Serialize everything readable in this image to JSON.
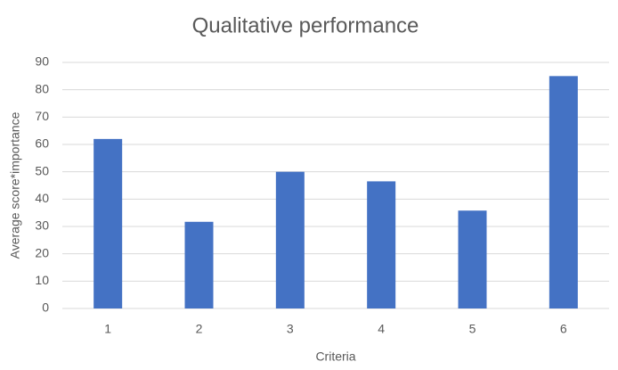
{
  "chart_data": {
    "type": "bar",
    "title": "Qualitative performance",
    "x_label": "Criteria",
    "y_label": "Average score*importance",
    "categories": [
      "1",
      "2",
      "3",
      "4",
      "5",
      "6"
    ],
    "values": [
      62,
      31.7,
      50,
      46.5,
      35.8,
      85
    ],
    "color": "#4472c4",
    "ylim": [
      0,
      90
    ],
    "yticks": [
      0,
      10,
      20,
      30,
      40,
      50,
      60,
      70,
      80,
      90
    ],
    "grid": true
  }
}
